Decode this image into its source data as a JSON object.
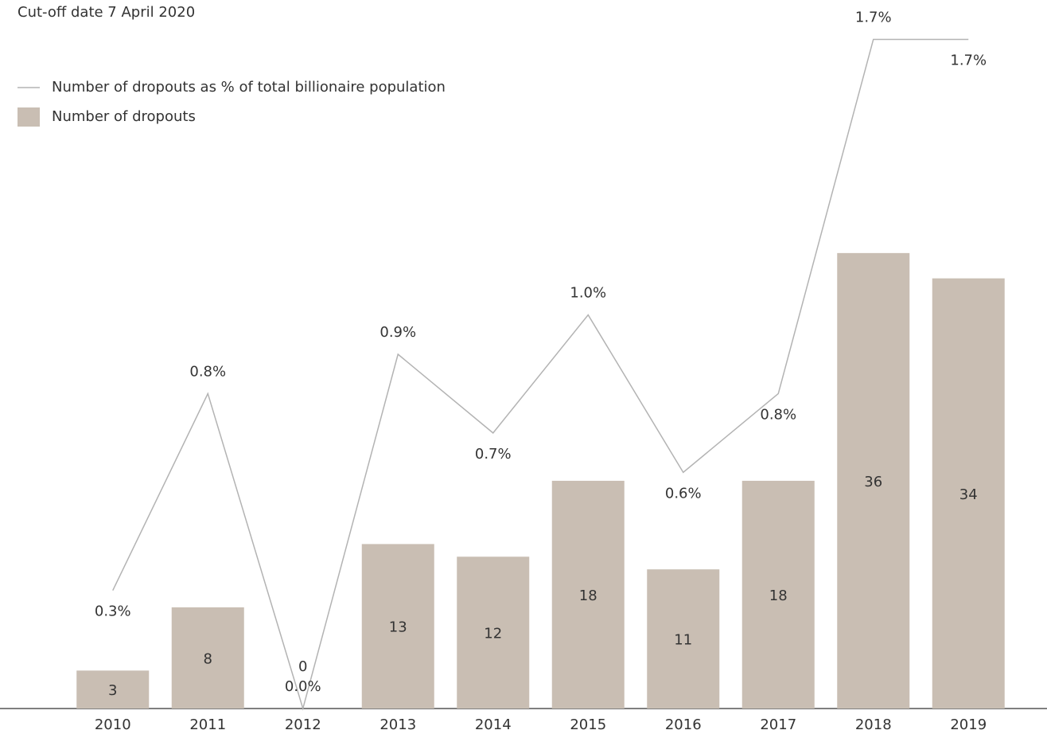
{
  "chart_data": {
    "type": "bar",
    "subtitle": "Cut-off date 7 April 2020",
    "categories": [
      "2010",
      "2011",
      "2012",
      "2013",
      "2014",
      "2015",
      "2016",
      "2017",
      "2018",
      "2019"
    ],
    "series": [
      {
        "name": "Number of dropouts as % of total billionaire population",
        "type": "line",
        "axis": "y2",
        "color": "#b3b3b3",
        "values": [
          0.3,
          0.8,
          0.0,
          0.9,
          0.7,
          1.0,
          0.6,
          0.8,
          1.7,
          1.7
        ],
        "value_labels": [
          "0.3%",
          "0.8%",
          "0.0%",
          "0.9%",
          "0.7%",
          "1.0%",
          "0.6%",
          "0.8%",
          "1.7%",
          "1.7%"
        ]
      },
      {
        "name": "Number of dropouts",
        "type": "bar",
        "color": "#c9beb3",
        "values": [
          3,
          8,
          0,
          13,
          12,
          18,
          11,
          18,
          36,
          34
        ]
      }
    ],
    "ylim": [
      0,
      56
    ],
    "y2lim": [
      0,
      1.8
    ],
    "grid": false,
    "legend": "top-left"
  }
}
